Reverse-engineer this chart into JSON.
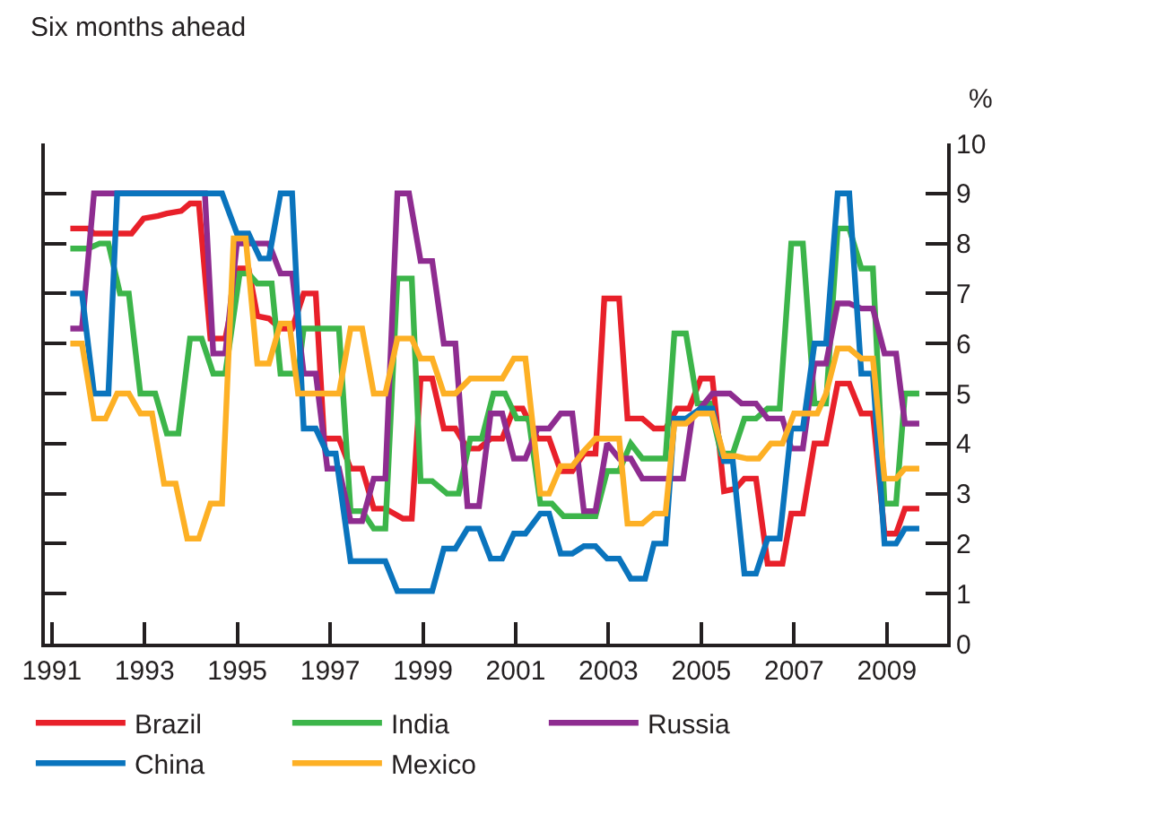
{
  "chart_data": {
    "type": "line",
    "title": "Six months ahead",
    "ylabel": "%",
    "xlim": [
      1990.85,
      2010.3
    ],
    "xticks": [
      1991,
      1993,
      1995,
      1997,
      1999,
      2001,
      2003,
      2005,
      2007,
      2009
    ],
    "ylim": [
      0,
      10
    ],
    "yticks": [
      0,
      1,
      2,
      3,
      4,
      5,
      6,
      7,
      8,
      9,
      10
    ],
    "legend": "bottom",
    "series": [
      {
        "name": "Brazil",
        "color": "#e8202a",
        "x": [
          1991.4,
          1991.78,
          1991.91,
          1992.72,
          1992.98,
          1993.29,
          1993.48,
          1993.79,
          1993.98,
          1994.17,
          1994.42,
          1994.74,
          1995.05,
          1995.24,
          1995.43,
          1995.68,
          1995.93,
          1996.18,
          1996.43,
          1996.69,
          1996.87,
          1997.19,
          1997.44,
          1997.69,
          1997.94,
          1998.19,
          1998.57,
          1998.76,
          1998.95,
          1999.2,
          1999.45,
          1999.7,
          1999.96,
          2000.21,
          2000.46,
          2000.71,
          2000.96,
          2001.15,
          2001.47,
          2001.72,
          2001.97,
          2002.22,
          2002.47,
          2002.72,
          2002.91,
          2003.23,
          2003.41,
          2003.73,
          2003.98,
          2004.23,
          2004.48,
          2004.74,
          2004.99,
          2005.24,
          2005.49,
          2005.74,
          2005.93,
          2006.18,
          2006.43,
          2006.75,
          2006.94,
          2007.19,
          2007.44,
          2007.69,
          2007.94,
          2008.19,
          2008.45,
          2008.7,
          2008.95,
          2009.2,
          2009.39,
          2009.7
        ],
        "values": [
          8.3,
          8.3,
          8.2,
          8.2,
          8.5,
          8.55,
          8.6,
          8.65,
          8.8,
          8.8,
          6.1,
          6.1,
          7.5,
          7.5,
          6.55,
          6.5,
          6.3,
          6.3,
          7.0,
          7.0,
          4.1,
          4.1,
          3.5,
          3.5,
          2.7,
          2.7,
          2.5,
          2.5,
          5.3,
          5.3,
          4.3,
          4.3,
          3.9,
          3.9,
          4.1,
          4.1,
          4.7,
          4.7,
          4.1,
          4.1,
          3.45,
          3.45,
          3.8,
          3.8,
          6.9,
          6.9,
          4.5,
          4.5,
          4.3,
          4.3,
          4.7,
          4.7,
          5.3,
          5.3,
          3.05,
          3.1,
          3.3,
          3.3,
          1.6,
          1.6,
          2.6,
          2.6,
          4.0,
          4.0,
          5.2,
          5.2,
          4.6,
          4.6,
          2.2,
          2.2,
          2.7,
          2.7
        ]
      },
      {
        "name": "India",
        "color": "#3cb54a",
        "x": [
          1991.4,
          1991.78,
          1992.03,
          1992.22,
          1992.47,
          1992.66,
          1992.91,
          1993.23,
          1993.48,
          1993.73,
          1993.98,
          1994.23,
          1994.48,
          1994.74,
          1995.05,
          1995.24,
          1995.43,
          1995.74,
          1995.93,
          1996.31,
          1996.43,
          1997.19,
          1997.44,
          1997.69,
          1997.94,
          1998.19,
          1998.45,
          1998.76,
          1998.95,
          1999.2,
          1999.52,
          1999.77,
          2000.02,
          2000.27,
          2000.52,
          2000.77,
          2001.02,
          2001.28,
          2001.53,
          2001.78,
          2002.03,
          2002.72,
          2002.97,
          2003.23,
          2003.48,
          2003.73,
          2004.23,
          2004.42,
          2004.67,
          2004.92,
          2005.18,
          2005.43,
          2005.68,
          2005.93,
          2006.18,
          2006.43,
          2006.69,
          2006.94,
          2007.19,
          2007.44,
          2007.69,
          2007.94,
          2008.19,
          2008.45,
          2008.7,
          2008.95,
          2009.2,
          2009.39,
          2009.7
        ],
        "values": [
          7.9,
          7.9,
          8.0,
          8.0,
          7.0,
          7.0,
          5.0,
          5.0,
          4.2,
          4.2,
          6.1,
          6.1,
          5.4,
          5.4,
          7.4,
          7.4,
          7.2,
          7.2,
          5.4,
          5.4,
          6.3,
          6.3,
          2.65,
          2.65,
          2.3,
          2.3,
          7.3,
          7.3,
          3.25,
          3.25,
          3.0,
          3.0,
          4.1,
          4.1,
          5.0,
          5.0,
          4.5,
          4.5,
          2.8,
          2.8,
          2.55,
          2.55,
          3.45,
          3.45,
          4.0,
          3.7,
          3.7,
          6.2,
          6.2,
          4.8,
          4.8,
          3.8,
          3.8,
          4.5,
          4.5,
          4.7,
          4.7,
          8.0,
          8.0,
          4.8,
          4.8,
          8.3,
          8.3,
          7.5,
          7.5,
          2.8,
          2.8,
          5.0,
          5.0
        ]
      },
      {
        "name": "Russia",
        "color": "#8e2c90",
        "x": [
          1991.4,
          1991.65,
          1991.91,
          1994.3,
          1994.48,
          1994.74,
          1994.99,
          1995.68,
          1995.93,
          1996.18,
          1996.43,
          1996.69,
          1996.94,
          1997.19,
          1997.44,
          1997.69,
          1997.94,
          1998.19,
          1998.45,
          1998.7,
          1998.95,
          1999.2,
          1999.45,
          1999.7,
          1999.96,
          2000.21,
          2000.46,
          2000.71,
          2000.96,
          2001.21,
          2001.47,
          2001.72,
          2001.97,
          2002.22,
          2002.47,
          2002.72,
          2002.97,
          2003.23,
          2003.48,
          2003.73,
          2004.61,
          2004.8,
          2005.24,
          2005.62,
          2005.87,
          2006.18,
          2006.43,
          2006.75,
          2006.94,
          2007.19,
          2007.44,
          2007.69,
          2007.94,
          2008.19,
          2008.45,
          2008.7,
          2008.95,
          2009.2,
          2009.39,
          2009.7
        ],
        "values": [
          6.3,
          6.3,
          9.0,
          9.0,
          5.8,
          5.8,
          8.0,
          8.0,
          7.4,
          7.4,
          5.4,
          5.4,
          3.5,
          3.5,
          2.45,
          2.45,
          3.3,
          3.3,
          9.0,
          9.0,
          7.65,
          7.65,
          6.0,
          6.0,
          2.75,
          2.75,
          4.6,
          4.6,
          3.7,
          3.7,
          4.3,
          4.3,
          4.6,
          4.6,
          2.65,
          2.65,
          4.0,
          3.7,
          3.7,
          3.3,
          3.3,
          4.5,
          5.0,
          5.0,
          4.8,
          4.8,
          4.5,
          4.5,
          3.9,
          3.9,
          5.6,
          5.6,
          6.8,
          6.8,
          6.7,
          6.7,
          5.8,
          5.8,
          4.4,
          4.4
        ]
      },
      {
        "name": "China",
        "color": "#0a74bd",
        "x": [
          1991.4,
          1991.65,
          1991.91,
          1992.22,
          1992.41,
          1994.67,
          1994.99,
          1995.24,
          1995.49,
          1995.68,
          1995.93,
          1996.18,
          1996.43,
          1996.69,
          1996.94,
          1997.12,
          1997.44,
          1998.19,
          1998.45,
          1999.2,
          1999.45,
          1999.7,
          1999.96,
          2000.21,
          2000.46,
          2000.71,
          2000.96,
          2001.21,
          2001.53,
          2001.72,
          2001.97,
          2002.22,
          2002.47,
          2002.72,
          2002.97,
          2003.23,
          2003.48,
          2003.79,
          2003.98,
          2004.23,
          2004.42,
          2004.67,
          2004.99,
          2005.24,
          2005.49,
          2005.68,
          2005.93,
          2006.18,
          2006.43,
          2006.69,
          2006.94,
          2007.19,
          2007.44,
          2007.69,
          2007.94,
          2008.19,
          2008.45,
          2008.7,
          2008.95,
          2009.2,
          2009.39,
          2009.7
        ],
        "values": [
          7.0,
          7.0,
          5.0,
          5.0,
          9.0,
          9.0,
          8.2,
          8.2,
          7.7,
          7.7,
          9.0,
          9.0,
          4.3,
          4.3,
          3.8,
          3.8,
          1.65,
          1.65,
          1.05,
          1.05,
          1.9,
          1.9,
          2.3,
          2.3,
          1.7,
          1.7,
          2.2,
          2.2,
          2.6,
          2.6,
          1.8,
          1.8,
          1.95,
          1.95,
          1.7,
          1.7,
          1.3,
          1.3,
          2.0,
          2.0,
          4.5,
          4.5,
          4.7,
          4.7,
          3.65,
          3.65,
          1.4,
          1.4,
          2.1,
          2.1,
          4.3,
          4.3,
          6.0,
          6.0,
          9.0,
          9.0,
          5.4,
          5.4,
          2.0,
          2.0,
          2.3,
          2.3
        ]
      },
      {
        "name": "Mexico",
        "color": "#fdb025",
        "x": [
          1991.4,
          1991.65,
          1991.91,
          1992.16,
          1992.41,
          1992.66,
          1992.91,
          1993.16,
          1993.42,
          1993.67,
          1993.92,
          1994.17,
          1994.42,
          1994.67,
          1994.92,
          1995.18,
          1995.43,
          1995.68,
          1995.93,
          1996.12,
          1996.31,
          1997.19,
          1997.44,
          1997.69,
          1997.94,
          1998.19,
          1998.45,
          1998.76,
          1998.95,
          1999.2,
          1999.45,
          1999.7,
          2000.02,
          2000.71,
          2000.96,
          2001.21,
          2001.53,
          2001.72,
          2001.97,
          2002.22,
          2002.47,
          2002.72,
          2003.23,
          2003.41,
          2003.73,
          2003.98,
          2004.23,
          2004.42,
          2004.67,
          2004.92,
          2005.24,
          2005.49,
          2005.74,
          2005.99,
          2006.24,
          2006.5,
          2006.75,
          2007.0,
          2007.5,
          2007.69,
          2007.94,
          2008.19,
          2008.45,
          2008.7,
          2008.95,
          2009.2,
          2009.39,
          2009.7
        ],
        "values": [
          6.0,
          6.0,
          4.5,
          4.5,
          5.0,
          5.0,
          4.6,
          4.6,
          3.2,
          3.2,
          2.1,
          2.1,
          2.8,
          2.8,
          8.1,
          8.1,
          5.6,
          5.6,
          6.4,
          6.4,
          5.0,
          5.0,
          6.3,
          6.3,
          5.0,
          5.0,
          6.1,
          6.1,
          5.7,
          5.7,
          5.0,
          5.0,
          5.3,
          5.3,
          5.7,
          5.7,
          3.0,
          3.0,
          3.55,
          3.55,
          3.85,
          4.1,
          4.1,
          2.4,
          2.4,
          2.6,
          2.6,
          4.4,
          4.4,
          4.6,
          4.6,
          3.75,
          3.75,
          3.7,
          3.7,
          4.0,
          4.0,
          4.6,
          4.6,
          5.0,
          5.9,
          5.9,
          5.7,
          5.7,
          3.3,
          3.3,
          3.5,
          3.5
        ]
      }
    ]
  }
}
